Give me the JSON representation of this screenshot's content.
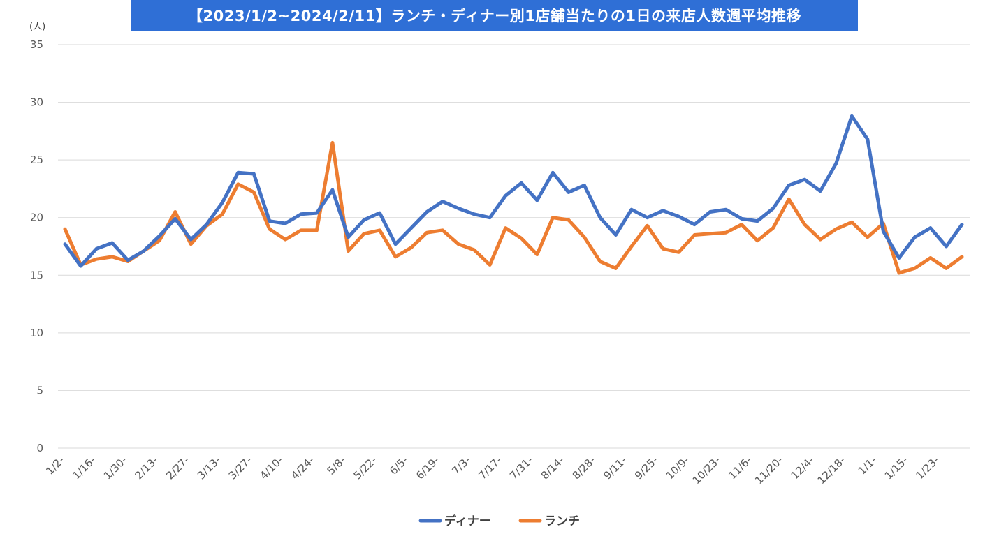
{
  "chart_data": {
    "type": "line",
    "title": "【2023/1/2~2024/2/11】ランチ・ディナー別1店舗当たりの1日の来店人数週平均推移",
    "ylabel": "(人)",
    "xlabel": "",
    "ylim": [
      0,
      35
    ],
    "yticks": [
      "0",
      "5",
      "10",
      "15",
      "20",
      "25",
      "30",
      "35"
    ],
    "grid": true,
    "legend_position": "bottom",
    "x_labels": [
      "1/2-",
      "1/16-",
      "1/30-",
      "2/13-",
      "2/27-",
      "3/13-",
      "3/27-",
      "4/10-",
      "4/24-",
      "5/8-",
      "5/22-",
      "6/5-",
      "6/19-",
      "7/3-",
      "7/17-",
      "7/31-",
      "8/14-",
      "8/28-",
      "9/11-",
      "9/25-",
      "10/9-",
      "10/23-",
      "11/6-",
      "11/20-",
      "12/4-",
      "12/18-",
      "1/1-",
      "1/15-",
      "1/23-"
    ],
    "series": [
      {
        "name": "ディナー",
        "color": "#4472c4",
        "values": [
          17.7,
          15.8,
          17.3,
          17.8,
          16.3,
          17.1,
          18.4,
          19.9,
          18.1,
          19.4,
          21.3,
          23.9,
          23.8,
          19.7,
          19.5,
          20.3,
          20.4,
          22.4,
          18.3,
          19.8,
          20.4,
          17.7,
          19.1,
          20.5,
          21.4,
          20.8,
          20.3,
          20.0,
          21.9,
          23.0,
          21.5,
          23.9,
          22.2,
          22.8,
          20.0,
          18.5,
          20.7,
          20.0,
          20.6,
          20.1,
          19.4,
          20.5,
          20.7,
          19.9,
          19.7,
          20.8,
          22.8,
          23.3,
          22.3,
          24.7,
          28.8,
          26.8,
          18.8,
          16.5,
          18.3,
          19.1,
          17.5,
          19.4
        ]
      },
      {
        "name": "ランチ",
        "color": "#ed7d31",
        "values": [
          19.0,
          15.9,
          16.4,
          16.6,
          16.2,
          17.1,
          18.0,
          20.5,
          17.7,
          19.3,
          20.3,
          22.9,
          22.2,
          19.0,
          18.1,
          18.9,
          18.9,
          26.5,
          17.1,
          18.6,
          18.9,
          16.6,
          17.4,
          18.7,
          18.9,
          17.7,
          17.2,
          15.9,
          19.1,
          18.2,
          16.8,
          20.0,
          19.8,
          18.3,
          16.2,
          15.6,
          17.5,
          19.3,
          17.3,
          17.0,
          18.5,
          18.6,
          18.7,
          19.4,
          18.0,
          19.1,
          21.6,
          19.4,
          18.1,
          19.0,
          19.6,
          18.3,
          19.5,
          15.2,
          15.6,
          16.5,
          15.6,
          16.6
        ]
      }
    ]
  }
}
